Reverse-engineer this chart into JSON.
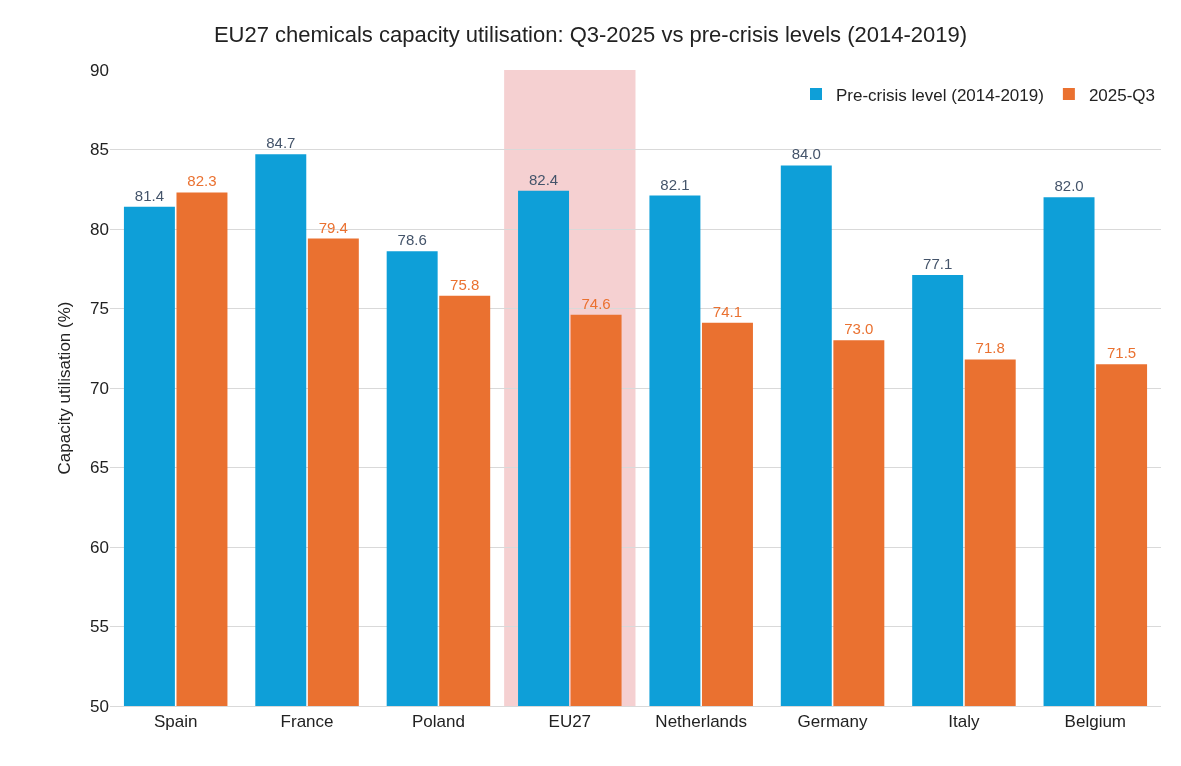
{
  "chart_data": {
    "type": "bar",
    "title": "EU27 chemicals capacity utilisation: Q3-2025 vs pre-crisis levels (2014-2019)",
    "ylabel": "Capacity utilisation (%)",
    "categories": [
      "Spain",
      "France",
      "Poland",
      "EU27",
      "Netherlands",
      "Germany",
      "Italy",
      "Belgium"
    ],
    "series": [
      {
        "name": "Pre-crisis level (2014-2019)",
        "color": "#0e9fd8",
        "values": [
          81.4,
          84.7,
          78.6,
          82.4,
          82.1,
          84.0,
          77.1,
          82.0
        ],
        "value_labels": [
          "81.4",
          "84.7",
          "78.6",
          "82.4",
          "82.1",
          "84.0",
          "77.1",
          "82.0"
        ]
      },
      {
        "name": "2025-Q3",
        "color": "#ea7130",
        "values": [
          82.3,
          79.4,
          75.8,
          74.6,
          74.1,
          73.0,
          71.8,
          71.5
        ],
        "value_labels": [
          "82.3",
          "79.4",
          "75.8",
          "74.6",
          "74.1",
          "73.0",
          "71.8",
          "71.5"
        ]
      }
    ],
    "ylim": [
      50,
      90
    ],
    "yticks": [
      50,
      55,
      60,
      65,
      70,
      75,
      80,
      85,
      90
    ],
    "grid": "y",
    "legend": "top right",
    "bands": [
      {
        "axis": "x",
        "from": "EU27",
        "to": "EU27",
        "color": "#f2c4c6"
      }
    ]
  }
}
